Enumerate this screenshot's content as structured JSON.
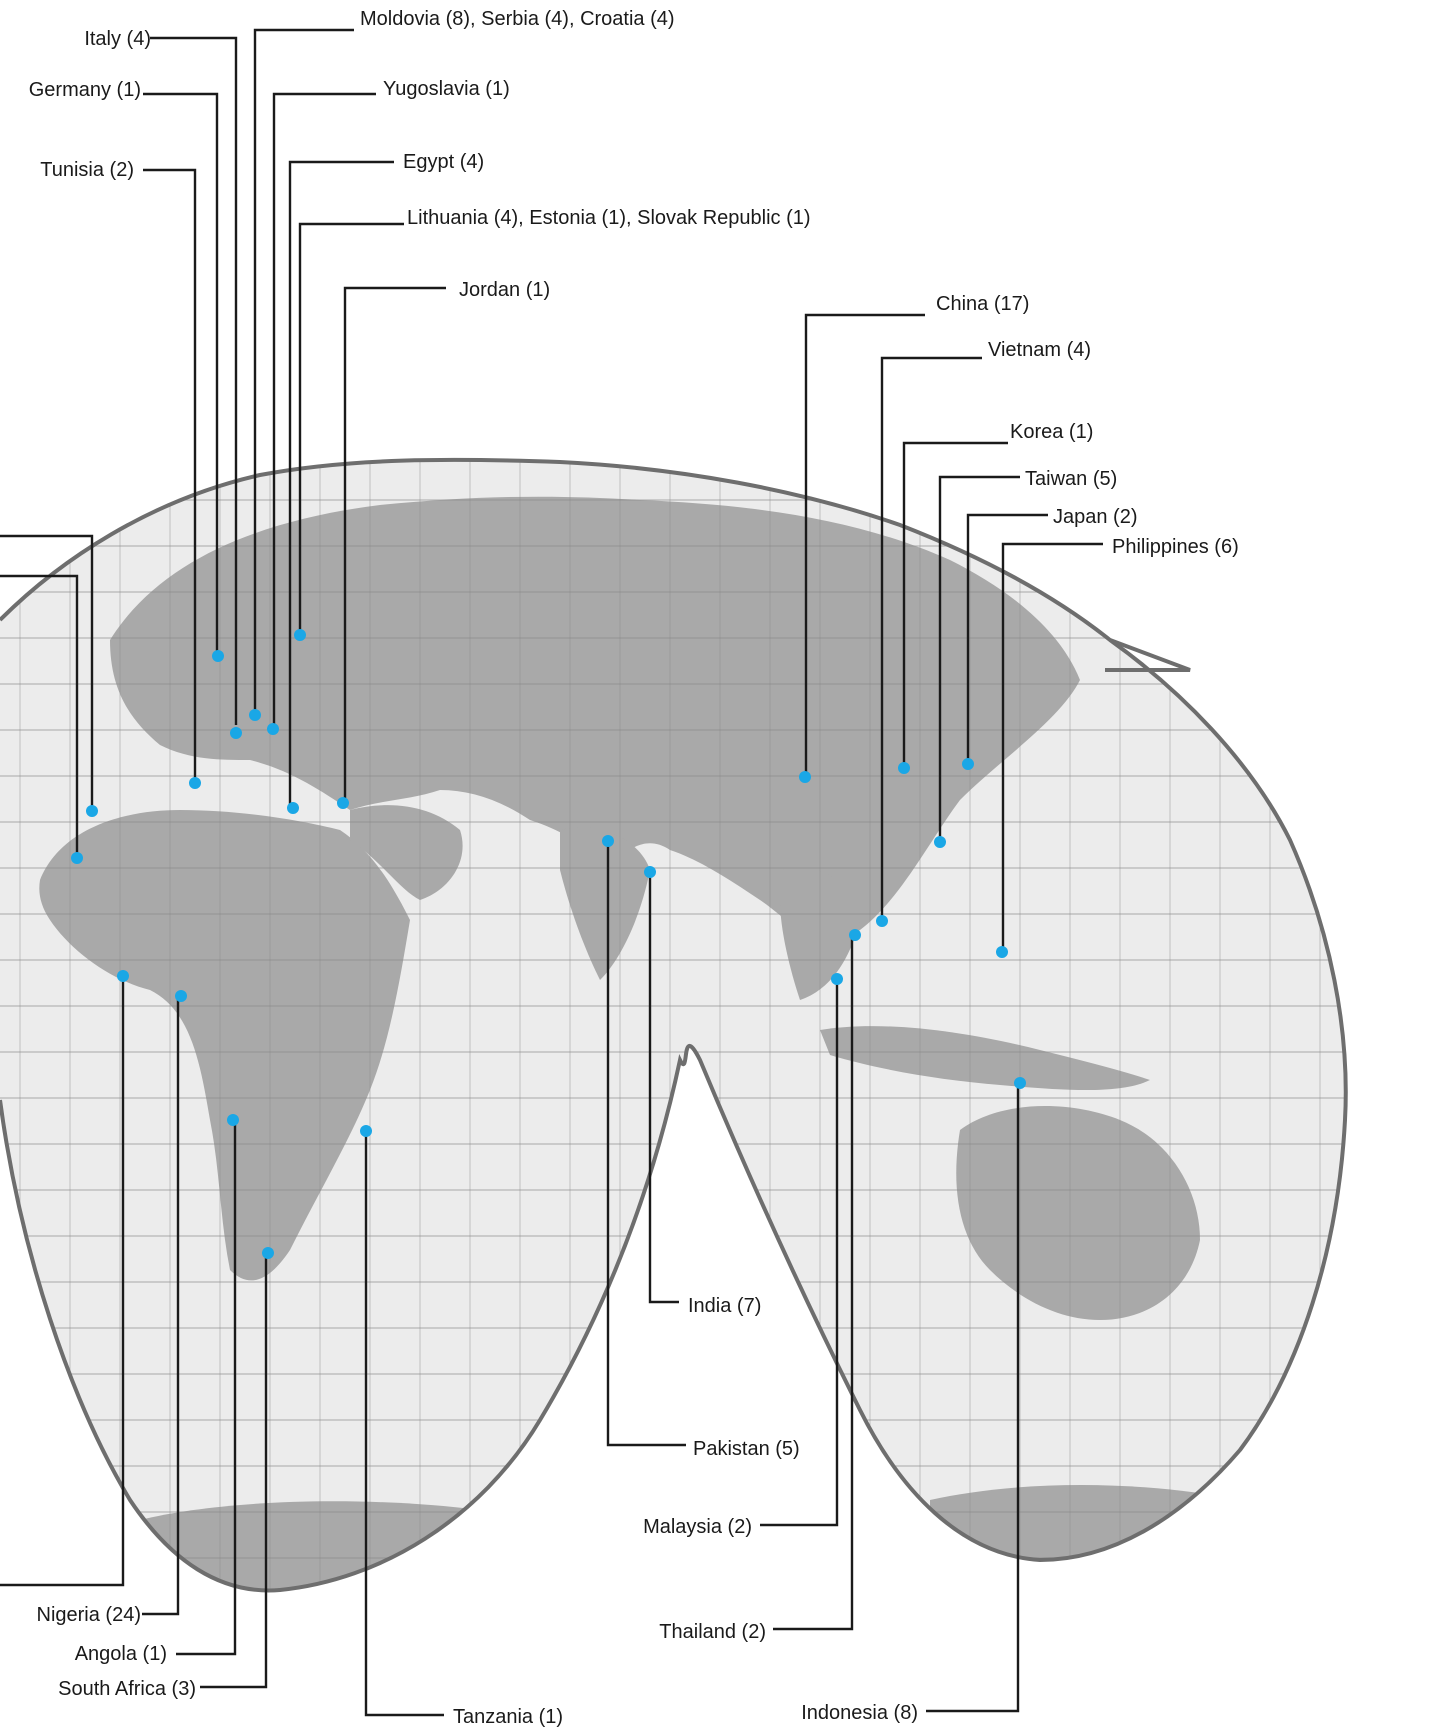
{
  "map": {
    "marker_color": "#1aa7e6",
    "land_color": "#a9a9a9",
    "ocean_color": "#ececec",
    "outline_color": "#6e6e6e",
    "callouts": [
      {
        "id": "italy",
        "label": "Italy (4)"
      },
      {
        "id": "moldovia-serbia-croatia",
        "label": "Moldovia (8), Serbia (4), Croatia (4)"
      },
      {
        "id": "germany",
        "label": "Germany (1)"
      },
      {
        "id": "yugoslavia",
        "label": "Yugoslavia (1)"
      },
      {
        "id": "tunisia",
        "label": "Tunisia (2)"
      },
      {
        "id": "egypt",
        "label": "Egypt (4)"
      },
      {
        "id": "lithuania-estonia-slovak",
        "label": "Lithuania (4), Estonia (1), Slovak Republic (1)"
      },
      {
        "id": "jordan",
        "label": "Jordan (1)"
      },
      {
        "id": "china",
        "label": "China (17)"
      },
      {
        "id": "vietnam",
        "label": "Vietnam (4)"
      },
      {
        "id": "korea",
        "label": "Korea (1)"
      },
      {
        "id": "taiwan",
        "label": "Taiwan (5)"
      },
      {
        "id": "japan",
        "label": "Japan (2)"
      },
      {
        "id": "philippines",
        "label": "Philippines (6)"
      },
      {
        "id": "india",
        "label": "India (7)"
      },
      {
        "id": "pakistan",
        "label": "Pakistan (5)"
      },
      {
        "id": "malaysia",
        "label": "Malaysia (2)"
      },
      {
        "id": "thailand",
        "label": "Thailand (2)"
      },
      {
        "id": "indonesia",
        "label": "Indonesia (8)"
      },
      {
        "id": "nigeria",
        "label": "Nigeria (24)"
      },
      {
        "id": "angola",
        "label": "Angola (1)"
      },
      {
        "id": "south-africa",
        "label": "South Africa (3)"
      },
      {
        "id": "tanzania",
        "label": "Tanzania (1)"
      }
    ]
  }
}
